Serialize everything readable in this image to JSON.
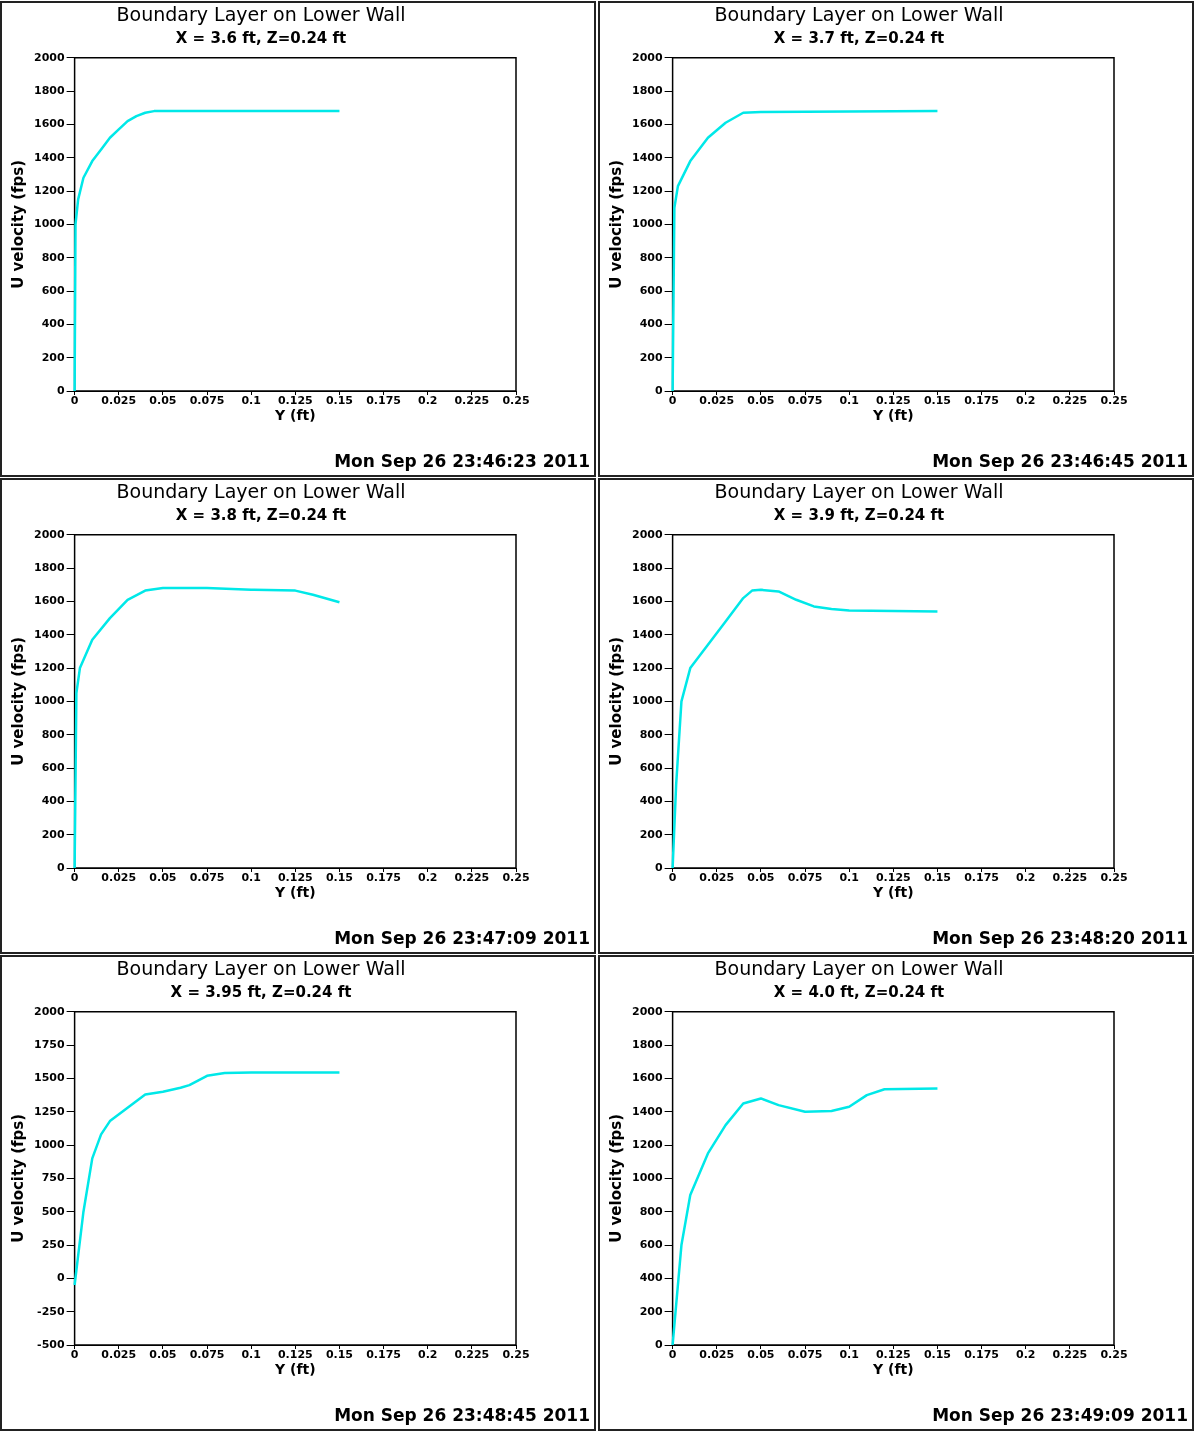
{
  "chart_data": [
    {
      "type": "line",
      "title": "Boundary Layer on Lower Wall",
      "subtitle": "X = 3.6 ft, Z=0.24 ft",
      "xlabel": "Y (ft)",
      "ylabel": "U velocity (fps)",
      "xlim": [
        0,
        0.25
      ],
      "xticks": [
        0,
        0.025,
        0.05,
        0.075,
        0.1,
        0.125,
        0.15,
        0.175,
        0.2,
        0.225,
        0.25
      ],
      "ylim": [
        0,
        2000
      ],
      "yticks": [
        0,
        200,
        400,
        600,
        800,
        1000,
        1200,
        1400,
        1600,
        1800,
        2000
      ],
      "grid": false,
      "legend": false,
      "annotations": [
        "Mon Sep 26 23:46:23 2011"
      ],
      "series": [
        {
          "color": "#00e8e8",
          "x": [
            0,
            0.0005,
            0.002,
            0.005,
            0.01,
            0.015,
            0.02,
            0.025,
            0.03,
            0.035,
            0.04,
            0.045,
            0.05,
            0.1,
            0.15
          ],
          "values": [
            0,
            1000,
            1150,
            1280,
            1380,
            1450,
            1520,
            1570,
            1620,
            1650,
            1670,
            1680,
            1680,
            1680,
            1680
          ]
        }
      ]
    },
    {
      "type": "line",
      "title": "Boundary Layer on Lower Wall",
      "subtitle": "X = 3.7 ft, Z=0.24 ft",
      "xlabel": "Y (ft)",
      "ylabel": "U velocity (fps)",
      "xlim": [
        0,
        0.25
      ],
      "xticks": [
        0,
        0.025,
        0.05,
        0.075,
        0.1,
        0.125,
        0.15,
        0.175,
        0.2,
        0.225,
        0.25
      ],
      "ylim": [
        0,
        2000
      ],
      "yticks": [
        0,
        200,
        400,
        600,
        800,
        1000,
        1200,
        1400,
        1600,
        1800,
        2000
      ],
      "grid": false,
      "legend": false,
      "annotations": [
        "Mon Sep 26 23:46:45 2011"
      ],
      "series": [
        {
          "color": "#00e8e8",
          "x": [
            0,
            0.001,
            0.003,
            0.01,
            0.02,
            0.03,
            0.04,
            0.05,
            0.15
          ],
          "values": [
            0,
            1100,
            1230,
            1380,
            1520,
            1610,
            1670,
            1675,
            1680
          ]
        }
      ]
    },
    {
      "type": "line",
      "title": "Boundary Layer on Lower Wall",
      "subtitle": "X = 3.8 ft, Z=0.24 ft",
      "xlabel": "Y (ft)",
      "ylabel": "U velocity (fps)",
      "xlim": [
        0,
        0.25
      ],
      "xticks": [
        0,
        0.025,
        0.05,
        0.075,
        0.1,
        0.125,
        0.15,
        0.175,
        0.2,
        0.225,
        0.25
      ],
      "ylim": [
        0,
        2000
      ],
      "yticks": [
        0,
        200,
        400,
        600,
        800,
        1000,
        1200,
        1400,
        1600,
        1800,
        2000
      ],
      "grid": false,
      "legend": false,
      "annotations": [
        "Mon Sep 26 23:47:09 2011"
      ],
      "series": [
        {
          "color": "#00e8e8",
          "x": [
            0,
            0.001,
            0.003,
            0.01,
            0.02,
            0.03,
            0.04,
            0.05,
            0.075,
            0.1,
            0.125,
            0.135,
            0.15
          ],
          "values": [
            0,
            1050,
            1200,
            1370,
            1500,
            1610,
            1665,
            1680,
            1680,
            1670,
            1665,
            1640,
            1595
          ]
        }
      ]
    },
    {
      "type": "line",
      "title": "Boundary Layer on Lower Wall",
      "subtitle": "X = 3.9 ft, Z=0.24 ft",
      "xlabel": "Y (ft)",
      "ylabel": "U velocity (fps)",
      "xlim": [
        0,
        0.25
      ],
      "xticks": [
        0,
        0.025,
        0.05,
        0.075,
        0.1,
        0.125,
        0.15,
        0.175,
        0.2,
        0.225,
        0.25
      ],
      "ylim": [
        0,
        2000
      ],
      "yticks": [
        0,
        200,
        400,
        600,
        800,
        1000,
        1200,
        1400,
        1600,
        1800,
        2000
      ],
      "grid": false,
      "legend": false,
      "annotations": [
        "Mon Sep 26 23:48:20 2011"
      ],
      "series": [
        {
          "color": "#00e8e8",
          "x": [
            0,
            0.002,
            0.005,
            0.01,
            0.02,
            0.03,
            0.04,
            0.045,
            0.05,
            0.06,
            0.07,
            0.08,
            0.09,
            0.1,
            0.15
          ],
          "values": [
            0,
            500,
            1000,
            1200,
            1340,
            1480,
            1620,
            1665,
            1670,
            1660,
            1610,
            1570,
            1555,
            1545,
            1540
          ]
        }
      ]
    },
    {
      "type": "line",
      "title": "Boundary Layer on Lower Wall",
      "subtitle": "X = 3.95 ft, Z=0.24 ft",
      "xlabel": "Y (ft)",
      "ylabel": "U velocity (fps)",
      "xlim": [
        0,
        0.25
      ],
      "xticks": [
        0,
        0.025,
        0.05,
        0.075,
        0.1,
        0.125,
        0.15,
        0.175,
        0.2,
        0.225,
        0.25
      ],
      "ylim": [
        -500,
        2000
      ],
      "yticks": [
        -500,
        -250,
        0,
        250,
        500,
        750,
        1000,
        1250,
        1500,
        1750,
        2000
      ],
      "grid": false,
      "legend": false,
      "annotations": [
        "Mon Sep 26 23:48:45 2011"
      ],
      "series": [
        {
          "color": "#00e8e8",
          "x": [
            0,
            0.005,
            0.01,
            0.015,
            0.02,
            0.03,
            0.04,
            0.05,
            0.06,
            0.065,
            0.075,
            0.085,
            0.1,
            0.15
          ],
          "values": [
            -50,
            500,
            900,
            1080,
            1180,
            1280,
            1380,
            1400,
            1430,
            1450,
            1520,
            1540,
            1545,
            1545
          ]
        }
      ]
    },
    {
      "type": "line",
      "title": "Boundary Layer on Lower Wall",
      "subtitle": "X = 4.0 ft, Z=0.24 ft",
      "xlabel": "Y (ft)",
      "ylabel": "U velocity (fps)",
      "xlim": [
        0,
        0.25
      ],
      "xticks": [
        0,
        0.025,
        0.05,
        0.075,
        0.1,
        0.125,
        0.15,
        0.175,
        0.2,
        0.225,
        0.25
      ],
      "ylim": [
        0,
        2000
      ],
      "yticks": [
        0,
        200,
        400,
        600,
        800,
        1000,
        1200,
        1400,
        1600,
        1800,
        2000
      ],
      "grid": false,
      "legend": false,
      "annotations": [
        "Mon Sep 26 23:49:09 2011"
      ],
      "series": [
        {
          "color": "#00e8e8",
          "x": [
            0,
            0.005,
            0.01,
            0.02,
            0.03,
            0.04,
            0.05,
            0.06,
            0.075,
            0.09,
            0.1,
            0.11,
            0.12,
            0.15
          ],
          "values": [
            0,
            600,
            900,
            1150,
            1320,
            1450,
            1480,
            1440,
            1400,
            1405,
            1430,
            1500,
            1535,
            1540
          ]
        }
      ]
    }
  ]
}
